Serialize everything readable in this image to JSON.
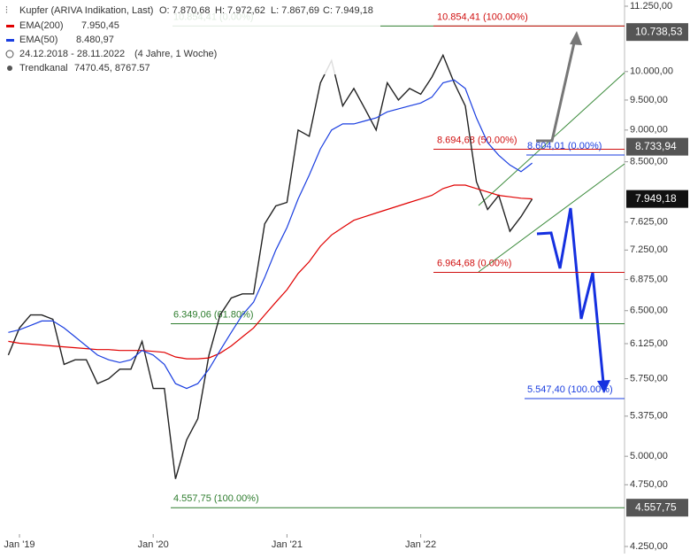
{
  "chart_data": {
    "type": "line",
    "log_scale": true,
    "grid": false,
    "ylim": [
      4250,
      11250
    ],
    "yticks": [
      {
        "value": 11250,
        "label": "11.250,00"
      },
      {
        "value": 10000,
        "label": "10.000,00"
      },
      {
        "value": 9500,
        "label": "9.500,00"
      },
      {
        "value": 9000,
        "label": "9.000,00"
      },
      {
        "value": 8500,
        "label": "8.500,00"
      },
      {
        "value": 7625,
        "label": "7.625,00"
      },
      {
        "value": 7250,
        "label": "7.250,00"
      },
      {
        "value": 6875,
        "label": "6.875,00"
      },
      {
        "value": 6500,
        "label": "6.500,00"
      },
      {
        "value": 6125,
        "label": "6.125,00"
      },
      {
        "value": 5750,
        "label": "5.750,00"
      },
      {
        "value": 5375,
        "label": "5.375,00"
      },
      {
        "value": 5000,
        "label": "5.000,00"
      },
      {
        "value": 4750,
        "label": "4.750,00"
      },
      {
        "value": 4250,
        "label": "4.250,00"
      }
    ],
    "categories": [
      null,
      "Jan '19",
      null,
      null,
      null,
      null,
      null,
      null,
      null,
      null,
      null,
      null,
      null,
      "Jan '20",
      null,
      null,
      null,
      null,
      null,
      null,
      null,
      null,
      null,
      null,
      null,
      "Jan '21",
      null,
      null,
      null,
      null,
      null,
      null,
      null,
      null,
      null,
      null,
      null,
      "Jan '22",
      null,
      null,
      null,
      null,
      null,
      null,
      null,
      null,
      null,
      null
    ],
    "ohlc": [
      "O: 7.870,68",
      "H: 7.972,62",
      "L: 7.867,69",
      "C: 7.949,18"
    ],
    "date_range": "24.12.2018 - 28.11.2022",
    "duration": "(4 Jahre, 1 Woche)",
    "channel": {
      "name": "Trendkanal",
      "label": "7470.45, 8767.57"
    },
    "series": [
      {
        "name": "Kupfer (ARIVA Indikation, Last)",
        "color": "#222222",
        "values": [
          6000,
          6300,
          6450,
          6450,
          6400,
          5900,
          5950,
          5950,
          5700,
          5750,
          5850,
          5850,
          6150,
          5650,
          5650,
          4800,
          5150,
          5350,
          6000,
          6450,
          6650,
          6700,
          6700,
          7600,
          7850,
          7900,
          9000,
          8900,
          9800,
          10200,
          9400,
          9700,
          9350,
          9000,
          9800,
          9500,
          9700,
          9600,
          9900,
          10300,
          9800,
          9400,
          8200,
          7800,
          8000,
          7500,
          7700,
          7949.18
        ]
      },
      {
        "name": "EMA(200)",
        "color": "#e00000",
        "last_label": "7.950,45",
        "values": [
          6150,
          6130,
          6120,
          6110,
          6100,
          6090,
          6080,
          6070,
          6060,
          6060,
          6050,
          6050,
          6050,
          6040,
          6030,
          5980,
          5960,
          5960,
          5970,
          6020,
          6100,
          6200,
          6300,
          6450,
          6600,
          6750,
          6950,
          7100,
          7300,
          7450,
          7550,
          7650,
          7700,
          7750,
          7800,
          7850,
          7900,
          7950,
          8000,
          8100,
          8150,
          8150,
          8100,
          8050,
          8000,
          7980,
          7960,
          7950.45
        ]
      },
      {
        "name": "EMA(50)",
        "color": "#1a3ee0",
        "last_label": "8.480,97",
        "values": [
          6250,
          6280,
          6330,
          6380,
          6380,
          6300,
          6200,
          6100,
          6000,
          5950,
          5920,
          5950,
          6050,
          6000,
          5900,
          5700,
          5650,
          5700,
          5850,
          6050,
          6250,
          6450,
          6600,
          6900,
          7250,
          7550,
          7950,
          8300,
          8700,
          9000,
          9100,
          9100,
          9150,
          9200,
          9300,
          9350,
          9400,
          9450,
          9550,
          9800,
          9850,
          9700,
          9200,
          8800,
          8600,
          8450,
          8350,
          8480.97
        ]
      }
    ],
    "levels": [
      {
        "value": 10854.41,
        "label": "10.854,41 (0.00%)",
        "color": "#2e7d2e"
      },
      {
        "value": 10854.41,
        "label": "10.854,41 (100.00%)",
        "color": "#d01010"
      },
      {
        "value": 8694.68,
        "label": "8.694,68 (50.00%)",
        "color": "#d01010"
      },
      {
        "value": 8604.01,
        "label": "8.604,01 (0.00%)",
        "color": "#1a3ee0"
      },
      {
        "value": 6964.68,
        "label": "6.964,68 (0.00%)",
        "color": "#d01010"
      },
      {
        "value": 6349.06,
        "label": "6.349,06 (61.80%)",
        "color": "#2e7d2e"
      },
      {
        "value": 5547.4,
        "label": "5.547,40 (100.00%)",
        "color": "#1a3ee0"
      },
      {
        "value": 4557.75,
        "label": "4.557,75 (100.00%)",
        "color": "#2e7d2e"
      }
    ],
    "price_labels": [
      {
        "value": 10738.53,
        "label": "10.738,53",
        "color": "#555555"
      },
      {
        "value": 8733.94,
        "label": "8.733,94",
        "color": "#555555"
      },
      {
        "value": 7949.18,
        "label": "7.949,18",
        "color": "#111111"
      },
      {
        "value": 4557.75,
        "label": "4.557,75",
        "color": "#555555"
      }
    ]
  }
}
